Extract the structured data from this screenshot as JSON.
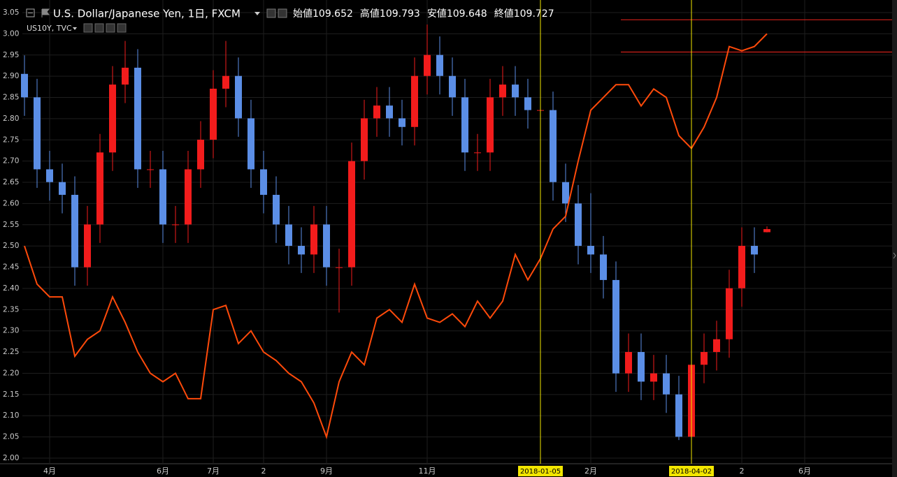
{
  "header": {
    "symbol": "U.S. Dollar/Japanese Yen, 1日, FXCM",
    "ohlc": [
      {
        "label": "始値",
        "value": "109.652"
      },
      {
        "label": "高値",
        "value": "109.793"
      },
      {
        "label": "安値",
        "value": "109.648"
      },
      {
        "label": "終値",
        "value": "109.727"
      }
    ],
    "overlay": "US10Y, TVC"
  },
  "chart_data": {
    "type": "candlestick",
    "grid": true,
    "categories": [
      null,
      null,
      "4月",
      null,
      null,
      null,
      null,
      null,
      null,
      null,
      null,
      "6月",
      null,
      null,
      null,
      "7月",
      null,
      null,
      null,
      "2",
      null,
      null,
      null,
      null,
      "9月",
      null,
      null,
      null,
      null,
      null,
      null,
      null,
      "11月",
      null,
      null,
      null,
      null,
      null,
      null,
      null,
      null,
      "2018-01-05",
      null,
      null,
      null,
      "2月",
      null,
      null,
      null,
      null,
      null,
      null,
      null,
      "2018-04-02",
      null,
      null,
      null,
      "2",
      null,
      null,
      null,
      null,
      "6月"
    ],
    "open": [
      113.5,
      112.93,
      111.18,
      110.87,
      110.56,
      108.8,
      109.84,
      111.59,
      113.24,
      113.65,
      111.18,
      111.18,
      109.84,
      109.84,
      111.18,
      111.9,
      113.14,
      113.45,
      112.42,
      111.18,
      110.56,
      109.84,
      109.32,
      109.11,
      109.84,
      108.8,
      108.8,
      111.38,
      112.42,
      112.73,
      112.42,
      112.21,
      113.45,
      113.96,
      113.45,
      112.93,
      111.59,
      111.59,
      112.93,
      113.24,
      112.93,
      112.62,
      112.62,
      110.87,
      110.35,
      109.32,
      109.11,
      108.49,
      106.22,
      106.74,
      106.02,
      106.22,
      105.71,
      104.68,
      106.43,
      106.74,
      107.05,
      108.29,
      109.32,
      109.652,
      null,
      null,
      null
    ],
    "high": [
      113.95,
      113.38,
      111.63,
      111.32,
      111.01,
      110.29,
      112.04,
      113.69,
      114.3,
      114.1,
      111.63,
      111.63,
      110.29,
      111.63,
      112.35,
      113.59,
      114.3,
      113.9,
      112.87,
      111.63,
      111.01,
      110.29,
      109.77,
      110.29,
      110.29,
      109.25,
      111.83,
      112.87,
      113.18,
      113.18,
      112.87,
      113.9,
      114.7,
      114.41,
      113.9,
      113.38,
      112.04,
      113.38,
      113.69,
      113.69,
      113.38,
      113.07,
      113.07,
      111.32,
      110.8,
      110.6,
      109.56,
      108.94,
      107.19,
      107.19,
      106.67,
      106.67,
      106.16,
      106.88,
      107.19,
      107.5,
      108.74,
      109.77,
      109.77,
      109.793,
      null,
      null,
      null
    ],
    "low": [
      112.48,
      110.73,
      110.42,
      110.11,
      108.35,
      108.35,
      109.39,
      111.14,
      112.79,
      110.73,
      110.73,
      109.39,
      109.39,
      109.39,
      110.73,
      111.45,
      112.69,
      111.97,
      110.73,
      110.11,
      109.39,
      108.87,
      108.66,
      108.66,
      108.35,
      107.7,
      108.35,
      110.93,
      111.97,
      111.97,
      111.76,
      111.76,
      113.0,
      113.0,
      112.48,
      111.14,
      111.14,
      111.14,
      112.48,
      112.48,
      112.17,
      112.17,
      110.42,
      109.9,
      108.87,
      108.66,
      108.04,
      105.77,
      105.77,
      105.57,
      105.57,
      105.26,
      104.6,
      104.5,
      105.98,
      106.29,
      106.6,
      107.84,
      108.66,
      109.648,
      null,
      null,
      null
    ],
    "close": [
      112.93,
      111.18,
      110.87,
      110.56,
      108.8,
      109.84,
      111.59,
      113.24,
      113.65,
      111.18,
      111.18,
      109.84,
      109.84,
      111.18,
      111.9,
      113.14,
      113.45,
      112.42,
      111.18,
      110.56,
      109.84,
      109.32,
      109.11,
      109.84,
      108.8,
      108.8,
      111.38,
      112.42,
      112.73,
      112.42,
      112.21,
      113.45,
      113.96,
      113.45,
      112.93,
      111.59,
      111.59,
      112.93,
      113.24,
      112.93,
      112.62,
      112.62,
      110.87,
      110.35,
      109.32,
      109.11,
      108.49,
      106.22,
      106.74,
      106.02,
      106.22,
      105.71,
      104.68,
      106.43,
      106.74,
      107.05,
      108.29,
      109.32,
      109.11,
      109.727,
      null,
      null,
      null
    ],
    "up_color": "#f21c1c",
    "down_color": "#5b8ee6",
    "y2lim": [
      104.16,
      114.99
    ],
    "series": [
      {
        "name": "US10Y",
        "color": "#ff4a0a",
        "values": [
          2.5,
          2.41,
          2.38,
          2.38,
          2.24,
          2.28,
          2.3,
          2.38,
          2.32,
          2.25,
          2.2,
          2.18,
          2.2,
          2.14,
          2.14,
          2.35,
          2.36,
          2.27,
          2.3,
          2.25,
          2.23,
          2.2,
          2.18,
          2.13,
          2.05,
          2.18,
          2.25,
          2.22,
          2.33,
          2.35,
          2.32,
          2.41,
          2.33,
          2.32,
          2.34,
          2.31,
          2.37,
          2.33,
          2.37,
          2.48,
          2.42,
          2.47,
          2.54,
          2.57,
          2.7,
          2.82,
          2.85,
          2.88,
          2.88,
          2.83,
          2.87,
          2.85,
          2.76,
          2.73,
          2.78,
          2.85,
          2.97,
          2.96,
          2.97,
          3.0,
          null,
          null,
          null
        ]
      }
    ],
    "hlines": [
      3.033,
      2.957
    ],
    "hline_color": "#d0201a",
    "ylim": [
      2.0,
      3.05
    ],
    "yticks": [
      {
        "value": 2.0,
        "label": "2.00"
      },
      {
        "value": 2.05,
        "label": "2.05"
      },
      {
        "value": 2.1,
        "label": "2.10"
      },
      {
        "value": 2.15,
        "label": "2.15"
      },
      {
        "value": 2.2,
        "label": "2.20"
      },
      {
        "value": 2.25,
        "label": "2.25"
      },
      {
        "value": 2.3,
        "label": "2.30"
      },
      {
        "value": 2.35,
        "label": "2.35"
      },
      {
        "value": 2.4,
        "label": "2.40"
      },
      {
        "value": 2.45,
        "label": "2.45"
      },
      {
        "value": 2.5,
        "label": "2.50"
      },
      {
        "value": 2.55,
        "label": "2.55"
      },
      {
        "value": 2.6,
        "label": "2.60"
      },
      {
        "value": 2.65,
        "label": "2.65"
      },
      {
        "value": 2.7,
        "label": "2.70"
      },
      {
        "value": 2.75,
        "label": "2.75"
      },
      {
        "value": 2.8,
        "label": "2.80"
      },
      {
        "value": 2.85,
        "label": "2.85"
      },
      {
        "value": 2.9,
        "label": "2.90"
      },
      {
        "value": 2.95,
        "label": "2.95"
      },
      {
        "value": 3.0,
        "label": "3.00"
      },
      {
        "value": 3.05,
        "label": "3.05"
      }
    ]
  }
}
